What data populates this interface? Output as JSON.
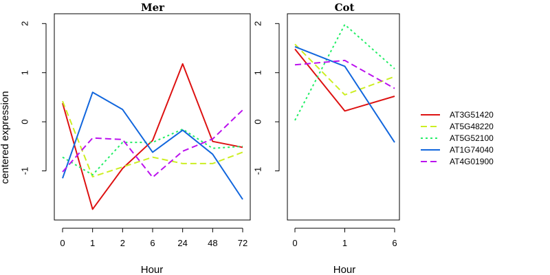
{
  "chart_data": {
    "type": "line",
    "ylabel": "centered expression",
    "legend_position": "right",
    "series": [
      {
        "name": "AT3G51420",
        "color": "#dd1111",
        "dash": "solid"
      },
      {
        "name": "AT5G48220",
        "color": "#ccee22",
        "dash": "dashed"
      },
      {
        "name": "AT5G52100",
        "color": "#22ee66",
        "dash": "dotted"
      },
      {
        "name": "AT1G74040",
        "color": "#1166dd",
        "dash": "solid"
      },
      {
        "name": "AT4G01900",
        "color": "#bb11ee",
        "dash": "dashed"
      }
    ],
    "panels": [
      {
        "title": "Mer",
        "xlabel": "Hour",
        "categories": [
          "0",
          "1",
          "2",
          "6",
          "24",
          "48",
          "72"
        ],
        "ylim": [
          -2,
          2.2
        ],
        "yticks": [
          2,
          1,
          0,
          -1
        ],
        "values": [
          [
            0.38,
            -1.78,
            -0.95,
            -0.38,
            1.18,
            -0.4,
            -0.52
          ],
          [
            0.42,
            -1.12,
            -0.92,
            -0.72,
            -0.85,
            -0.85,
            -0.62
          ],
          [
            -0.72,
            -1.08,
            -0.42,
            -0.42,
            -0.15,
            -0.54,
            -0.5
          ],
          [
            -1.15,
            0.6,
            0.25,
            -0.62,
            -0.17,
            -0.66,
            -1.58
          ],
          [
            -1.02,
            -0.33,
            -0.36,
            -1.13,
            -0.6,
            -0.35,
            0.24
          ]
        ]
      },
      {
        "title": "Cot",
        "xlabel": "Hour",
        "categories": [
          "0",
          "1",
          "6"
        ],
        "ylim": [
          -2,
          2.2
        ],
        "yticks": [
          2,
          1,
          0,
          -1
        ],
        "values": [
          [
            1.48,
            0.22,
            0.52
          ],
          [
            1.58,
            0.55,
            0.92
          ],
          [
            0.03,
            1.98,
            1.08
          ],
          [
            1.53,
            1.13,
            -0.42
          ],
          [
            1.16,
            1.25,
            0.68
          ]
        ]
      }
    ]
  }
}
